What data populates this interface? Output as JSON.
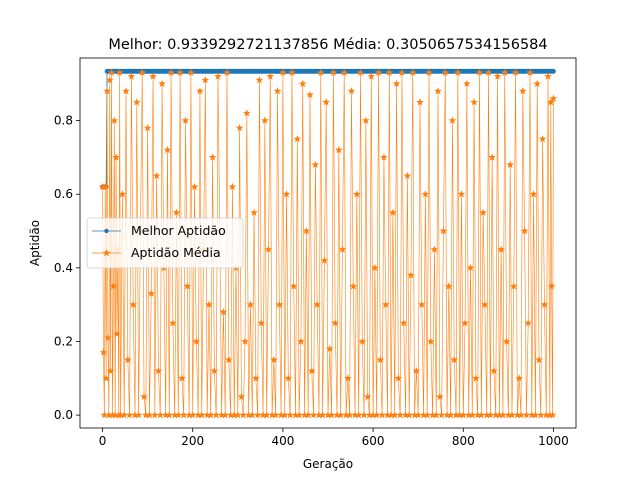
{
  "chart_data": {
    "type": "line",
    "title": "Melhor: 0.9339292721137856 Média: 0.3050657534156584",
    "xlabel": "Geração",
    "ylabel": "Aptidão",
    "xlim": [
      -50,
      1050
    ],
    "ylim": [
      -0.035,
      0.97
    ],
    "xticks": [
      0,
      200,
      400,
      600,
      800,
      1000
    ],
    "xtick_labels": [
      "0",
      "200",
      "400",
      "600",
      "800",
      "1000"
    ],
    "yticks": [
      0.0,
      0.2,
      0.4,
      0.6,
      0.8
    ],
    "ytick_labels": [
      "0.0",
      "0.2",
      "0.4",
      "0.6",
      "0.8"
    ],
    "grid": false,
    "legend": "center-left",
    "series": [
      {
        "name": "Melhor Aptidão",
        "color": "#1f77b4",
        "marker": "circle",
        "points": [
          [
            0,
            0.62
          ],
          [
            2,
            0.62
          ],
          [
            4,
            0.62
          ],
          [
            6,
            0.62
          ],
          [
            8,
            0.62
          ],
          [
            10,
            0.93
          ],
          [
            1000,
            0.9339
          ]
        ]
      },
      {
        "name": "Aptidão Média",
        "color": "#ff7f0e",
        "marker": "star",
        "points": [
          [
            0,
            0.62
          ],
          [
            2,
            0.17
          ],
          [
            4,
            0.0
          ],
          [
            6,
            0.62
          ],
          [
            8,
            0.1
          ],
          [
            10,
            0.88
          ],
          [
            12,
            0.21
          ],
          [
            14,
            0.0
          ],
          [
            16,
            0.91
          ],
          [
            18,
            0.12
          ],
          [
            20,
            0.93
          ],
          [
            22,
            0.0
          ],
          [
            24,
            0.35
          ],
          [
            26,
            0.8
          ],
          [
            28,
            0.0
          ],
          [
            30,
            0.7
          ],
          [
            32,
            0.22
          ],
          [
            34,
            0.45
          ],
          [
            36,
            0.0
          ],
          [
            38,
            0.93
          ],
          [
            40,
            0.0
          ],
          [
            44,
            0.6
          ],
          [
            48,
            0.0
          ],
          [
            52,
            0.88
          ],
          [
            56,
            0.15
          ],
          [
            60,
            0.0
          ],
          [
            64,
            0.92
          ],
          [
            68,
            0.3
          ],
          [
            72,
            0.0
          ],
          [
            76,
            0.85
          ],
          [
            80,
            0.0
          ],
          [
            84,
            0.5
          ],
          [
            88,
            0.93
          ],
          [
            92,
            0.05
          ],
          [
            96,
            0.0
          ],
          [
            100,
            0.78
          ],
          [
            104,
            0.0
          ],
          [
            108,
            0.33
          ],
          [
            112,
            0.92
          ],
          [
            116,
            0.0
          ],
          [
            120,
            0.65
          ],
          [
            124,
            0.12
          ],
          [
            128,
            0.0
          ],
          [
            132,
            0.9
          ],
          [
            136,
            0.4
          ],
          [
            140,
            0.0
          ],
          [
            144,
            0.72
          ],
          [
            148,
            0.0
          ],
          [
            152,
            0.93
          ],
          [
            156,
            0.25
          ],
          [
            160,
            0.0
          ],
          [
            164,
            0.55
          ],
          [
            168,
            0.0
          ],
          [
            172,
            0.93
          ],
          [
            176,
            0.1
          ],
          [
            180,
            0.0
          ],
          [
            184,
            0.8
          ],
          [
            188,
            0.35
          ],
          [
            192,
            0.0
          ],
          [
            196,
            0.93
          ],
          [
            200,
            0.0
          ],
          [
            204,
            0.62
          ],
          [
            208,
            0.2
          ],
          [
            212,
            0.0
          ],
          [
            216,
            0.88
          ],
          [
            220,
            0.0
          ],
          [
            224,
            0.45
          ],
          [
            228,
            0.91
          ],
          [
            232,
            0.0
          ],
          [
            236,
            0.3
          ],
          [
            240,
            0.0
          ],
          [
            244,
            0.7
          ],
          [
            248,
            0.12
          ],
          [
            252,
            0.0
          ],
          [
            256,
            0.92
          ],
          [
            260,
            0.5
          ],
          [
            264,
            0.0
          ],
          [
            268,
            0.28
          ],
          [
            272,
            0.0
          ],
          [
            276,
            0.93
          ],
          [
            280,
            0.15
          ],
          [
            284,
            0.0
          ],
          [
            288,
            0.62
          ],
          [
            292,
            0.0
          ],
          [
            296,
            0.4
          ],
          [
            300,
            0.0
          ],
          [
            304,
            0.78
          ],
          [
            308,
            0.05
          ],
          [
            312,
            0.0
          ],
          [
            316,
            0.2
          ],
          [
            320,
            0.82
          ],
          [
            324,
            0.0
          ],
          [
            328,
            0.3
          ],
          [
            332,
            0.0
          ],
          [
            336,
            0.55
          ],
          [
            340,
            0.1
          ],
          [
            344,
            0.0
          ],
          [
            348,
            0.91
          ],
          [
            352,
            0.25
          ],
          [
            356,
            0.0
          ],
          [
            360,
            0.8
          ],
          [
            364,
            0.0
          ],
          [
            368,
            0.45
          ],
          [
            372,
            0.92
          ],
          [
            376,
            0.0
          ],
          [
            380,
            0.15
          ],
          [
            384,
            0.0
          ],
          [
            388,
            0.88
          ],
          [
            392,
            0.3
          ],
          [
            396,
            0.0
          ],
          [
            400,
            0.93
          ],
          [
            404,
            0.0
          ],
          [
            408,
            0.6
          ],
          [
            412,
            0.1
          ],
          [
            416,
            0.0
          ],
          [
            420,
            0.93
          ],
          [
            424,
            0.35
          ],
          [
            428,
            0.0
          ],
          [
            432,
            0.75
          ],
          [
            436,
            0.0
          ],
          [
            440,
            0.2
          ],
          [
            444,
            0.9
          ],
          [
            448,
            0.0
          ],
          [
            452,
            0.5
          ],
          [
            456,
            0.0
          ],
          [
            460,
            0.87
          ],
          [
            464,
            0.12
          ],
          [
            468,
            0.0
          ],
          [
            472,
            0.68
          ],
          [
            476,
            0.3
          ],
          [
            480,
            0.0
          ],
          [
            484,
            0.93
          ],
          [
            488,
            0.0
          ],
          [
            492,
            0.42
          ],
          [
            496,
            0.85
          ],
          [
            500,
            0.0
          ],
          [
            504,
            0.18
          ],
          [
            508,
            0.0
          ],
          [
            512,
            0.93
          ],
          [
            516,
            0.25
          ],
          [
            520,
            0.0
          ],
          [
            524,
            0.72
          ],
          [
            528,
            0.0
          ],
          [
            532,
            0.45
          ],
          [
            536,
            0.93
          ],
          [
            540,
            0.0
          ],
          [
            544,
            0.1
          ],
          [
            548,
            0.0
          ],
          [
            552,
            0.88
          ],
          [
            556,
            0.35
          ],
          [
            560,
            0.0
          ],
          [
            564,
            0.6
          ],
          [
            568,
            0.0
          ],
          [
            572,
            0.93
          ],
          [
            576,
            0.2
          ],
          [
            580,
            0.0
          ],
          [
            584,
            0.8
          ],
          [
            588,
            0.05
          ],
          [
            592,
            0.0
          ],
          [
            596,
            0.92
          ],
          [
            600,
            0.0
          ],
          [
            604,
            0.4
          ],
          [
            608,
            0.0
          ],
          [
            612,
            0.93
          ],
          [
            616,
            0.15
          ],
          [
            620,
            0.0
          ],
          [
            624,
            0.7
          ],
          [
            628,
            0.3
          ],
          [
            632,
            0.0
          ],
          [
            636,
            0.93
          ],
          [
            640,
            0.0
          ],
          [
            644,
            0.55
          ],
          [
            648,
            0.0
          ],
          [
            652,
            0.9
          ],
          [
            656,
            0.1
          ],
          [
            660,
            0.0
          ],
          [
            664,
            0.93
          ],
          [
            668,
            0.25
          ],
          [
            672,
            0.0
          ],
          [
            676,
            0.65
          ],
          [
            680,
            0.0
          ],
          [
            684,
            0.38
          ],
          [
            688,
            0.93
          ],
          [
            692,
            0.0
          ],
          [
            696,
            0.12
          ],
          [
            700,
            0.0
          ],
          [
            704,
            0.85
          ],
          [
            708,
            0.3
          ],
          [
            712,
            0.0
          ],
          [
            716,
            0.6
          ],
          [
            720,
            0.0
          ],
          [
            724,
            0.93
          ],
          [
            728,
            0.2
          ],
          [
            732,
            0.0
          ],
          [
            736,
            0.45
          ],
          [
            740,
            0.0
          ],
          [
            744,
            0.88
          ],
          [
            748,
            0.05
          ],
          [
            752,
            0.0
          ],
          [
            756,
            0.5
          ],
          [
            760,
            0.93
          ],
          [
            764,
            0.0
          ],
          [
            768,
            0.35
          ],
          [
            772,
            0.0
          ],
          [
            776,
            0.8
          ],
          [
            780,
            0.15
          ],
          [
            784,
            0.0
          ],
          [
            788,
            0.93
          ],
          [
            792,
            0.0
          ],
          [
            796,
            0.6
          ],
          [
            800,
            0.0
          ],
          [
            804,
            0.25
          ],
          [
            808,
            0.9
          ],
          [
            812,
            0.0
          ],
          [
            816,
            0.4
          ],
          [
            820,
            0.0
          ],
          [
            824,
            0.85
          ],
          [
            828,
            0.1
          ],
          [
            832,
            0.0
          ],
          [
            836,
            0.93
          ],
          [
            840,
            0.0
          ],
          [
            844,
            0.55
          ],
          [
            848,
            0.3
          ],
          [
            852,
            0.0
          ],
          [
            856,
            0.93
          ],
          [
            860,
            0.0
          ],
          [
            864,
            0.7
          ],
          [
            868,
            0.12
          ],
          [
            872,
            0.0
          ],
          [
            876,
            0.92
          ],
          [
            880,
            0.0
          ],
          [
            884,
            0.45
          ],
          [
            888,
            0.0
          ],
          [
            892,
            0.93
          ],
          [
            896,
            0.2
          ],
          [
            900,
            0.0
          ],
          [
            904,
            0.68
          ],
          [
            908,
            0.0
          ],
          [
            912,
            0.35
          ],
          [
            916,
            0.93
          ],
          [
            920,
            0.0
          ],
          [
            924,
            0.1
          ],
          [
            928,
            0.0
          ],
          [
            932,
            0.88
          ],
          [
            936,
            0.5
          ],
          [
            940,
            0.0
          ],
          [
            944,
            0.25
          ],
          [
            948,
            0.93
          ],
          [
            952,
            0.0
          ],
          [
            956,
            0.6
          ],
          [
            960,
            0.0
          ],
          [
            964,
            0.9
          ],
          [
            968,
            0.15
          ],
          [
            972,
            0.0
          ],
          [
            976,
            0.75
          ],
          [
            980,
            0.3
          ],
          [
            984,
            0.0
          ],
          [
            988,
            0.92
          ],
          [
            992,
            0.0
          ],
          [
            994,
            0.85
          ],
          [
            996,
            0.35
          ],
          [
            998,
            0.0
          ],
          [
            1000,
            0.86
          ]
        ]
      }
    ]
  }
}
